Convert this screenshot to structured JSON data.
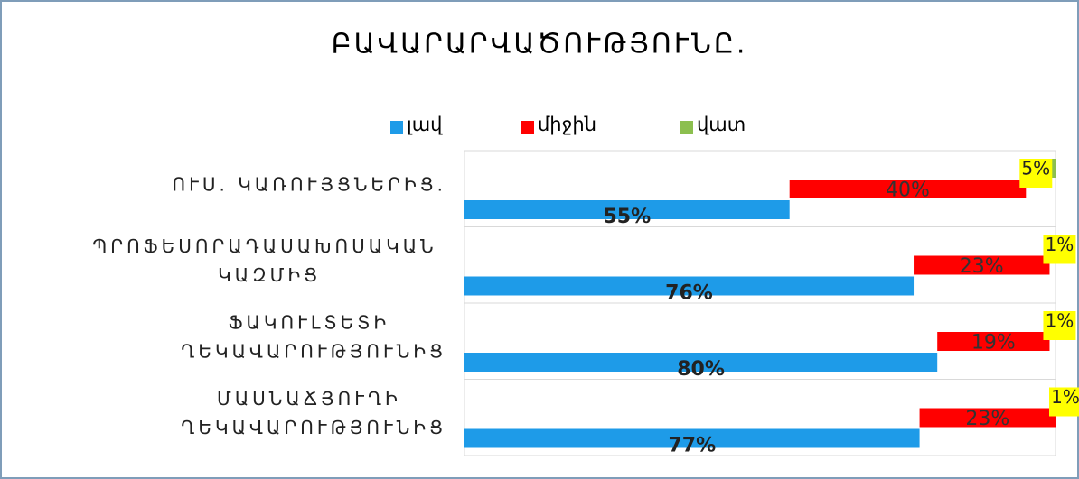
{
  "chart_data": {
    "type": "bar",
    "orientation": "horizontal",
    "title": "ԲԱՎԱՐԱՐՎԱԾՈՒԹՅՈՒՆԸ.",
    "categories": [
      "ՈՒՍ. ԿԱՌՈՒՅՑՆԵՐԻՑ.",
      "ՊՐՈՖԵՍՈՐԱԴԱՍԱԽՈՍԱԿԱՆ ԿԱԶՄԻՑ",
      "ՖԱԿՈՒԼՏԵՏԻ ՂԵԿԱՎԱՐՈՒԹՅՈՒՆԻՑ",
      "ՄԱՍՆԱՃՅՈՒՂԻ ՂԵԿԱՎԱՐՈՒԹՅՈՒՆԻՑ"
    ],
    "series": [
      {
        "name": "լավ",
        "color": "#1e9be8",
        "values": [
          55,
          76,
          80,
          77
        ],
        "value_labels": [
          "55%",
          "76%",
          "80%",
          "77%"
        ]
      },
      {
        "name": "միջին",
        "color": "#ff0000",
        "values": [
          40,
          23,
          19,
          23
        ],
        "value_labels": [
          "40%",
          "23%",
          "19%",
          "23%"
        ]
      },
      {
        "name": "վատ",
        "color": "#8cbf4f",
        "values": [
          5,
          1,
          1,
          1
        ],
        "value_labels": [
          "5%",
          "1%",
          "1%",
          "1%"
        ]
      }
    ],
    "xlim": [
      0,
      100
    ],
    "legend": "top"
  }
}
